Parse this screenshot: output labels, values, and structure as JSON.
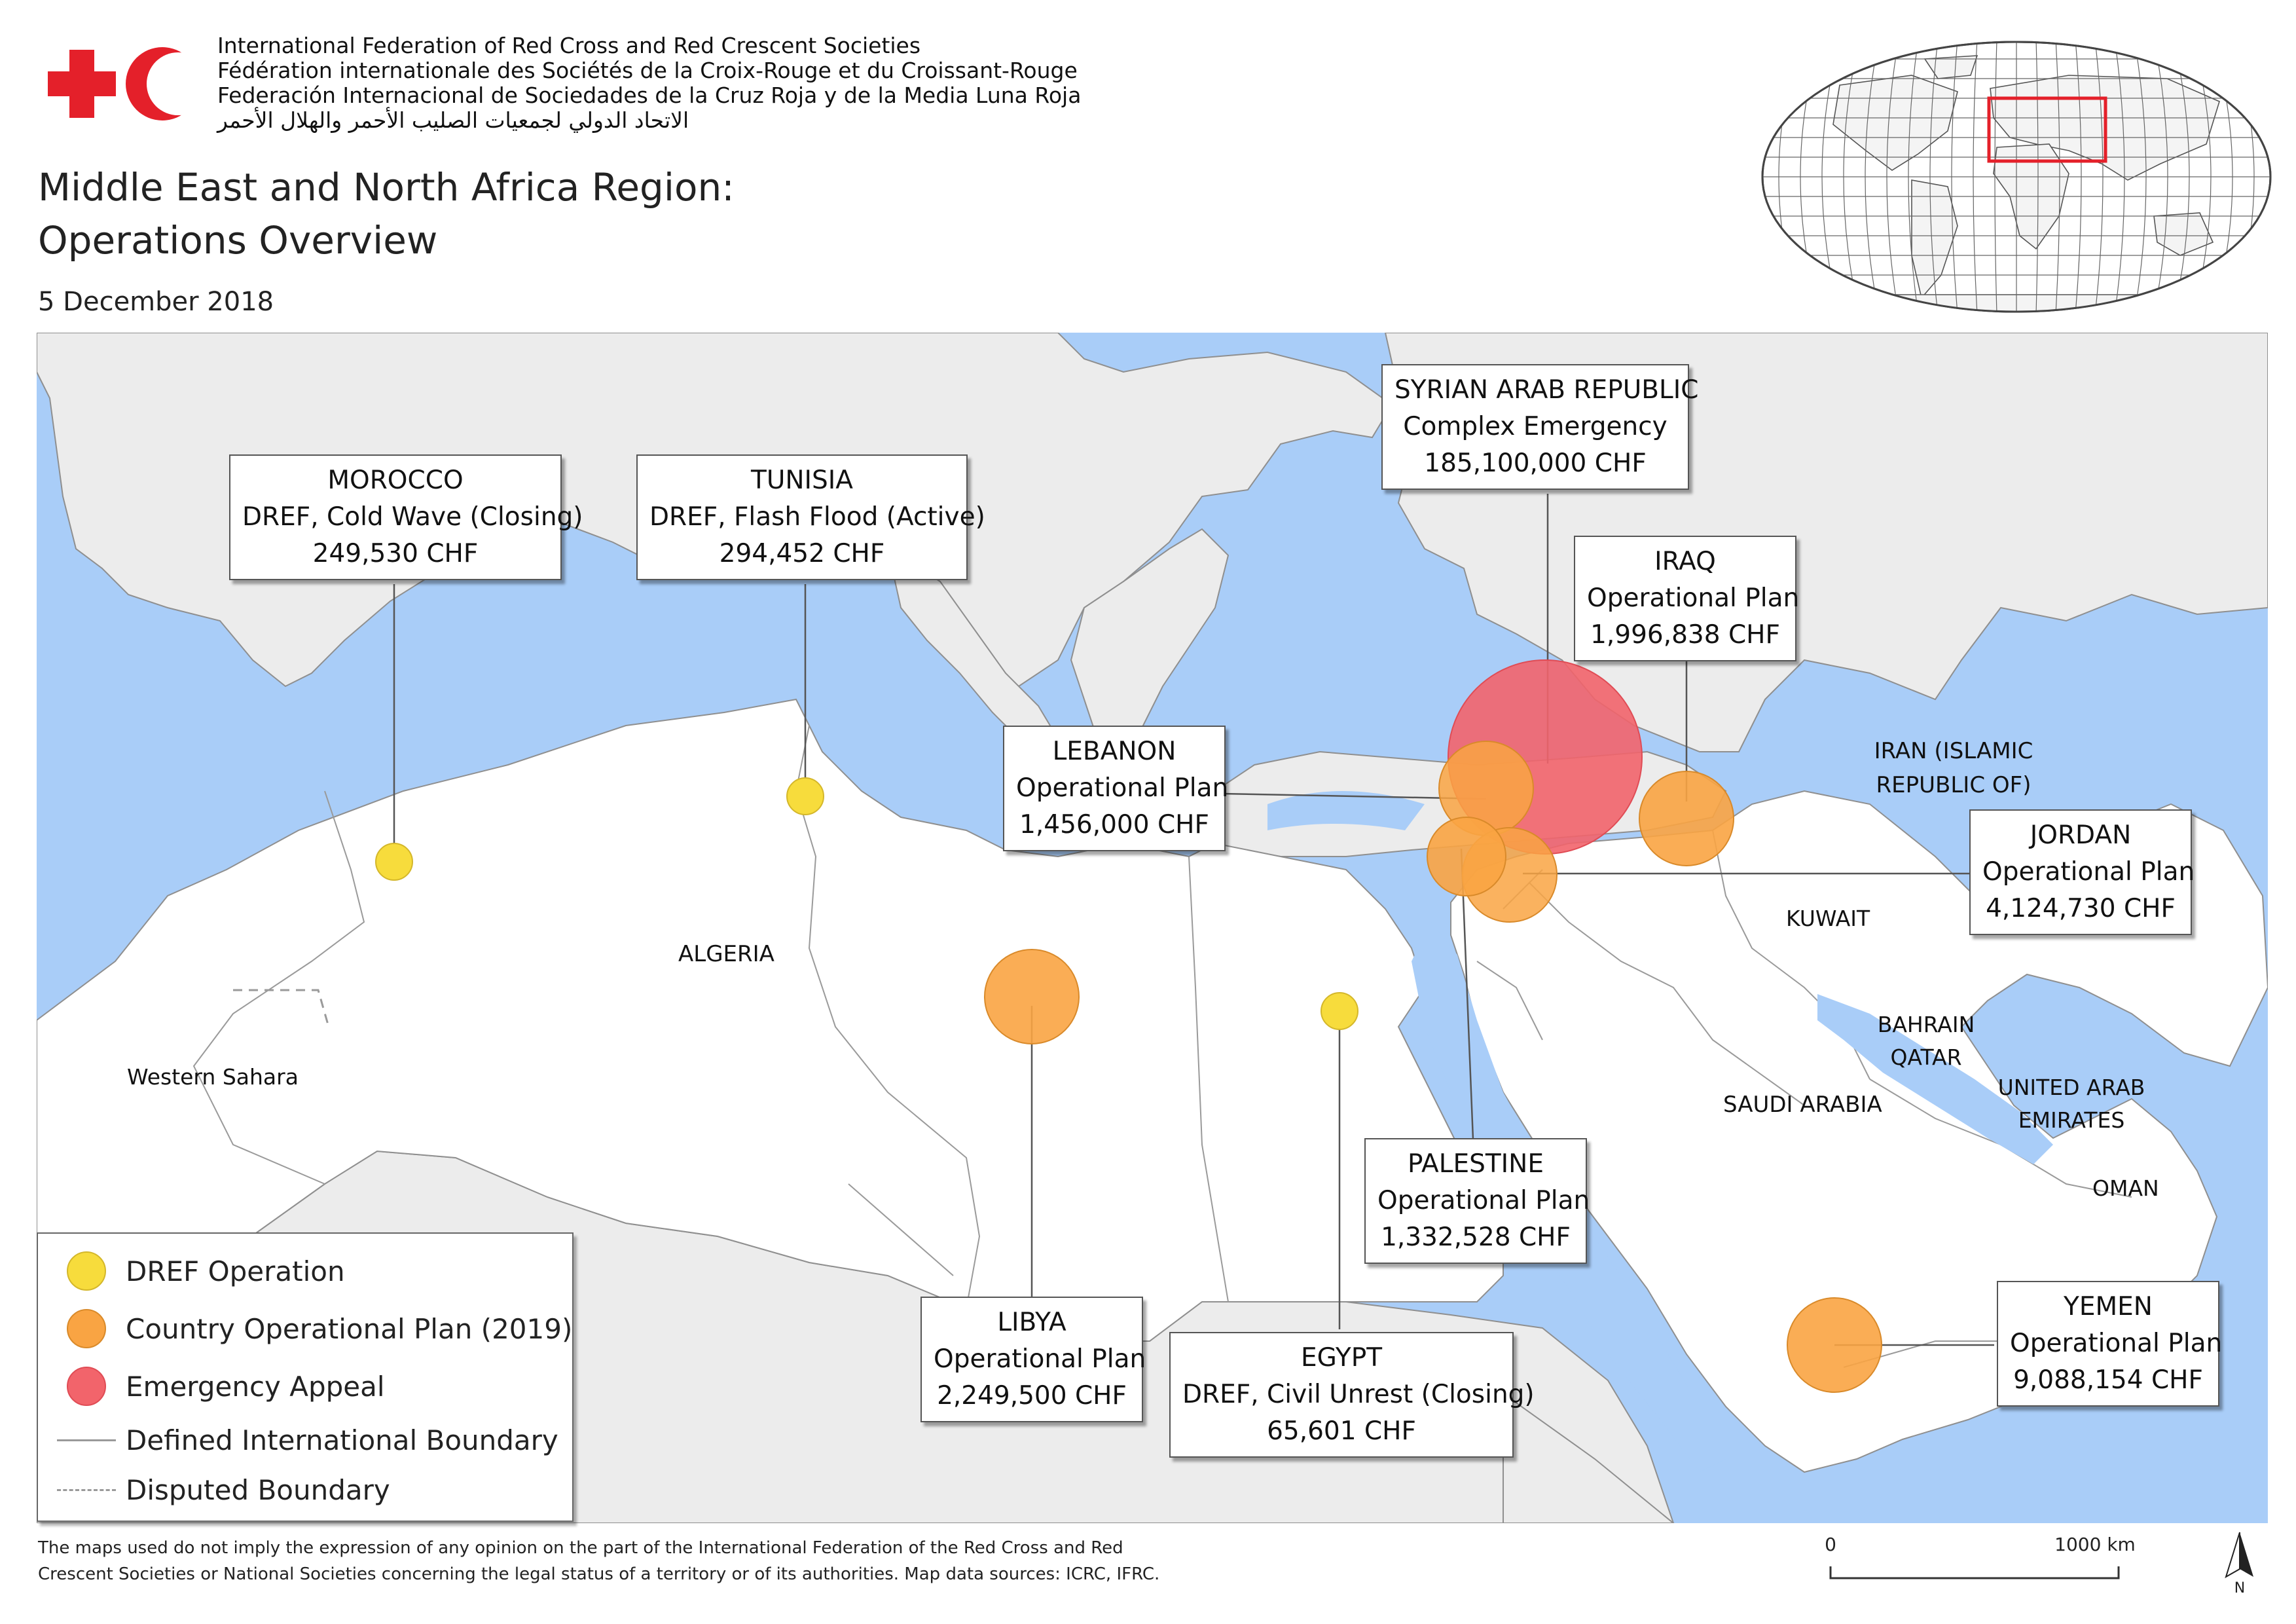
{
  "header": {
    "org_names": [
      "International Federation of Red Cross and Red Crescent Societies",
      "Fédération internationale des Sociétés de la Croix-Rouge et du Croissant-Rouge",
      "Federación Internacional de Sociedades de la Cruz Roja y de la Media Luna Roja",
      "الاتحاد الدولي لجمعيات الصليب الأحمر والهلال الأحمر"
    ],
    "title_line1": "Middle East and North Africa Region:",
    "title_line2": "Operations Overview",
    "date": "5 December 2018"
  },
  "colors": {
    "sea": "#a9cdf8",
    "land_region": "#ffffff",
    "land_other": "#ececec",
    "boundary": "#9a9a9a",
    "dref": "#f7dc3c",
    "plan": "#f9a443",
    "appeal": "#f2646b",
    "logo_red": "#e4202a"
  },
  "operations": [
    {
      "country": "MOROCCO",
      "type": "DREF, Cold Wave (Closing)",
      "amount": "249,530 CHF",
      "category": "dref"
    },
    {
      "country": "TUNISIA",
      "type": "DREF, Flash Flood (Active)",
      "amount": "294,452 CHF",
      "category": "dref"
    },
    {
      "country": "SYRIAN ARAB REPUBLIC",
      "type": "Complex Emergency",
      "amount": "185,100,000 CHF",
      "category": "appeal"
    },
    {
      "country": "IRAQ",
      "type": "Operational Plan",
      "amount": "1,996,838 CHF",
      "category": "plan"
    },
    {
      "country": "LEBANON",
      "type": "Operational Plan",
      "amount": "1,456,000 CHF",
      "category": "plan"
    },
    {
      "country": "JORDAN",
      "type": "Operational Plan",
      "amount": "4,124,730 CHF",
      "category": "plan"
    },
    {
      "country": "PALESTINE",
      "type": "Operational Plan",
      "amount": "1,332,528 CHF",
      "category": "plan"
    },
    {
      "country": "LIBYA",
      "type": "Operational Plan",
      "amount": "2,249,500 CHF",
      "category": "plan"
    },
    {
      "country": "EGYPT",
      "type": "DREF, Civil Unrest (Closing)",
      "amount": "65,601 CHF",
      "category": "dref"
    },
    {
      "country": "YEMEN",
      "type": "Operational Plan",
      "amount": "9,088,154 CHF",
      "category": "plan"
    }
  ],
  "country_labels": {
    "algeria": "ALGERIA",
    "western_sahara": "Western Sahara",
    "iran_1": "IRAN (ISLAMIC",
    "iran_2": "REPUBLIC OF)",
    "kuwait": "KUWAIT",
    "bahrain": "BAHRAIN",
    "qatar": "QATAR",
    "uae_1": "UNITED ARAB",
    "uae_2": "EMIRATES",
    "saudi": "SAUDI ARABIA",
    "oman": "OMAN"
  },
  "legend": {
    "dref": "DREF Operation",
    "plan": "Country Operational Plan (2019)",
    "appeal": "Emergency Appeal",
    "intl_boundary": "Defined International Boundary",
    "disputed": "Disputed Boundary"
  },
  "disclaimer_line1": "The maps used do not imply the expression of any opinion on the part of the International Federation of the Red Cross and Red",
  "disclaimer_line2": "Crescent Societies or National Societies concerning the legal status of a territory or of its authorities. Map data sources: ICRC, IFRC.",
  "scale": {
    "start": "0",
    "end": "1000 km"
  },
  "north_label": "N"
}
